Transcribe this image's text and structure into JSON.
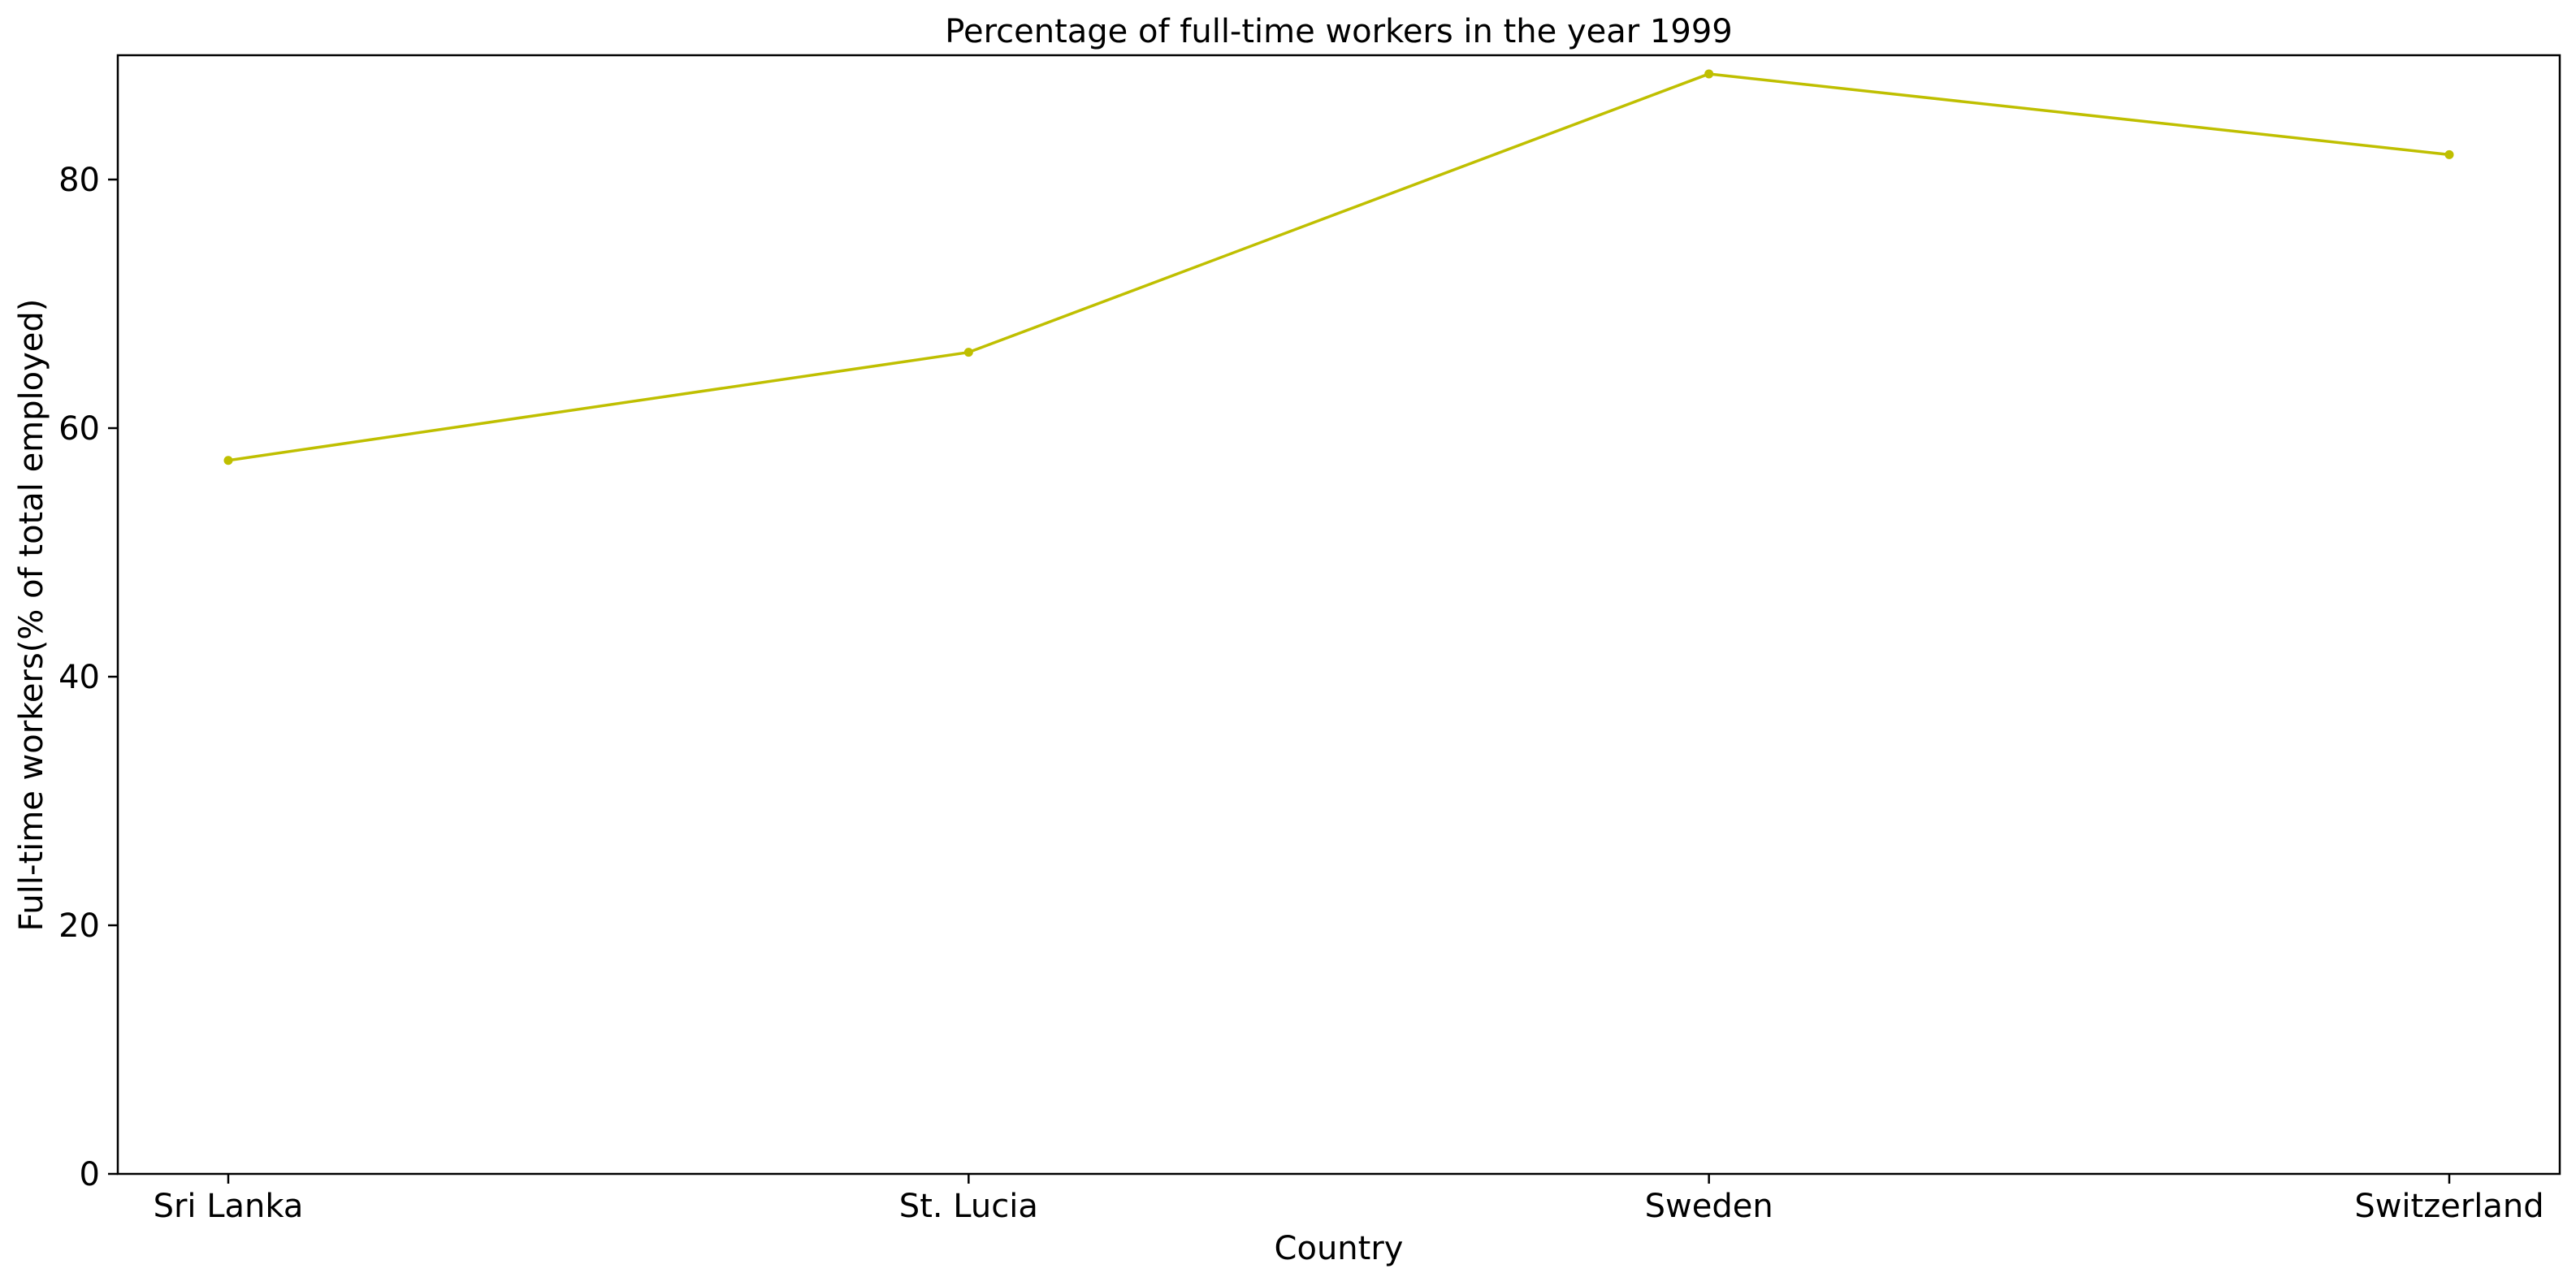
{
  "chart_data": {
    "type": "line",
    "title": "Percentage of full-time workers in the year 1999",
    "xlabel": "Country",
    "ylabel": "Full-time workers(% of total employed)",
    "categories": [
      "Sri Lanka",
      "St. Lucia",
      "Sweden",
      "Switzerland"
    ],
    "series": [
      {
        "values": [
          57.4,
          66.1,
          88.5,
          82.0
        ],
        "color": "#bfbf00"
      }
    ],
    "ylim": [
      0,
      90
    ],
    "yticks": [
      0,
      20,
      40,
      60,
      80
    ],
    "grid": false,
    "legend": "none",
    "marker": "circle"
  }
}
